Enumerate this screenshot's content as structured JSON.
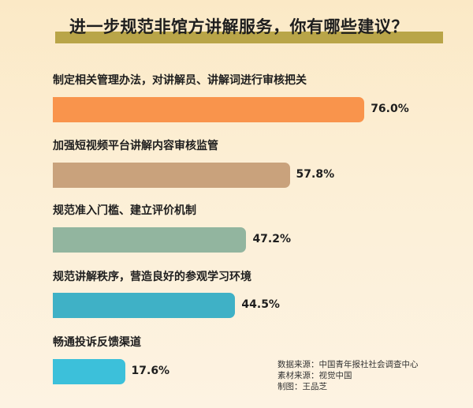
{
  "chart_data": {
    "type": "bar",
    "orientation": "horizontal",
    "title": "进一步规范非馆方讲解服务，你有哪些建议？",
    "categories": [
      "制定相关管理办法，对讲解员、讲解词进行审核把关",
      "加强短视频平台讲解内容审核监管",
      "规范准入门槛、建立评价机制",
      "规范讲解秩序，营造良好的参观学习环境",
      "畅通投诉反馈渠道"
    ],
    "values": [
      76.0,
      57.8,
      47.2,
      44.5,
      17.6
    ],
    "value_labels": [
      "76.0%",
      "57.8%",
      "47.2%",
      "44.5%",
      "17.6%"
    ],
    "colors": [
      "#f9944c",
      "#c9a27c",
      "#92b59f",
      "#3fb1c6",
      "#3cc0da"
    ],
    "xlim": [
      0,
      100
    ],
    "grid": false
  },
  "source": {
    "data": "数据来源：中国青年报社社会调查中心",
    "material": "素材来源：视觉中国",
    "author": "制图：王品芝"
  }
}
